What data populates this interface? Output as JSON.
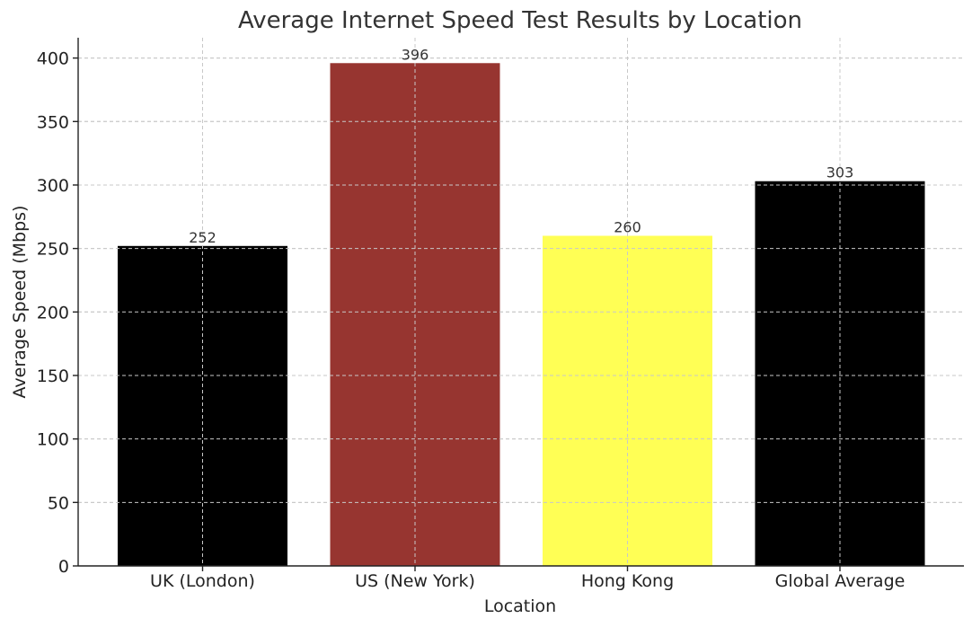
{
  "chart_data": {
    "type": "bar",
    "title": "Average Internet Speed Test Results by Location",
    "xlabel": "Location",
    "ylabel": "Average Speed (Mbps)",
    "categories": [
      "UK (London)",
      "US (New York)",
      "Hong Kong",
      "Global Average"
    ],
    "values": [
      252,
      396,
      260,
      303
    ],
    "data_labels": [
      "252",
      "396",
      "260",
      "303"
    ],
    "colors": [
      "#000000",
      "#973530",
      "#ffff55",
      "#000000"
    ],
    "ylim": [
      0,
      416
    ],
    "yticks": [
      0,
      50,
      100,
      150,
      200,
      250,
      300,
      350,
      400
    ],
    "ytick_labels": [
      "0",
      "50",
      "100",
      "150",
      "200",
      "250",
      "300",
      "350",
      "400"
    ],
    "grid": true,
    "legend": "none"
  }
}
